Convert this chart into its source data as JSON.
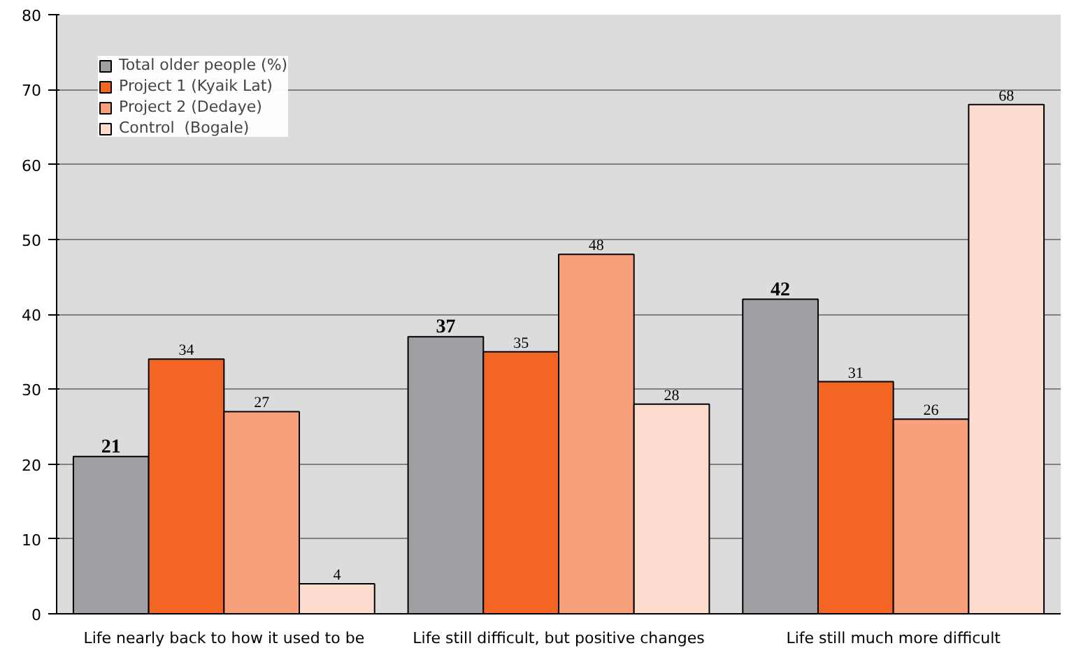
{
  "chart_data": {
    "type": "bar",
    "categories": [
      "Life nearly back to how it used to be",
      "Life still difficult, but positive changes",
      "Life still much more difficult"
    ],
    "series": [
      {
        "name": "Total older people (%)",
        "color": "#a0a0a4",
        "values": [
          21,
          37,
          42
        ]
      },
      {
        "name": "Project 1 (Kyaik Lat)",
        "color": "#f26522",
        "values": [
          34,
          35,
          31
        ]
      },
      {
        "name": "Project 2 (Dedaye)",
        "color": "#f7a07a",
        "values": [
          27,
          48,
          26
        ]
      },
      {
        "name": "Control  (Bogale)",
        "color": "#fbdccf",
        "values": [
          4,
          28,
          68
        ]
      }
    ],
    "ylim": [
      0,
      80
    ],
    "yticks": [
      0,
      10,
      20,
      30,
      40,
      50,
      60,
      70,
      80
    ],
    "grid": "y",
    "legend": "top left",
    "data_labels": true
  }
}
